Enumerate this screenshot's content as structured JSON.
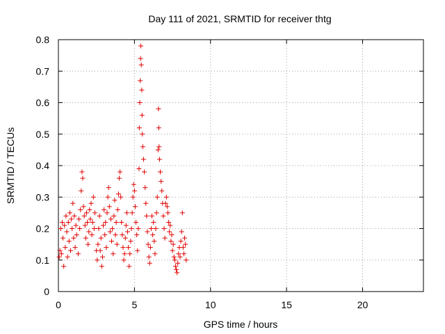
{
  "chart_data": {
    "type": "scatter",
    "title": "Day 111 of 2021, SRMTID for receiver thtg",
    "xlabel": "GPS time / hours",
    "ylabel": "SRMTID / TECUs",
    "xlim": [
      0,
      24
    ],
    "ylim": [
      0,
      0.8
    ],
    "xticks": [
      0,
      5,
      10,
      15,
      20
    ],
    "xtick_labels": [
      "0",
      "5",
      "10",
      "15",
      "20"
    ],
    "yticks": [
      0,
      0.1,
      0.2,
      0.3,
      0.4,
      0.5,
      0.6,
      0.7,
      0.8
    ],
    "ytick_labels": [
      "0",
      "0.1",
      "0.2",
      "0.3",
      "0.4",
      "0.5",
      "0.6",
      "0.7",
      "0.8"
    ],
    "grid": true,
    "marker": "plus",
    "color": "#e00000",
    "series": [
      {
        "name": "SRMTID",
        "points": [
          [
            0.05,
            0.11
          ],
          [
            0.1,
            0.13
          ],
          [
            0.15,
            0.2
          ],
          [
            0.2,
            0.12
          ],
          [
            0.25,
            0.22
          ],
          [
            0.3,
            0.17
          ],
          [
            0.35,
            0.08
          ],
          [
            0.4,
            0.21
          ],
          [
            0.45,
            0.14
          ],
          [
            0.5,
            0.24
          ],
          [
            0.55,
            0.19
          ],
          [
            0.6,
            0.11
          ],
          [
            0.65,
            0.22
          ],
          [
            0.7,
            0.16
          ],
          [
            0.75,
            0.25
          ],
          [
            0.8,
            0.13
          ],
          [
            0.85,
            0.23
          ],
          [
            0.9,
            0.2
          ],
          [
            0.95,
            0.28
          ],
          [
            1.0,
            0.17
          ],
          [
            1.05,
            0.24
          ],
          [
            1.1,
            0.14
          ],
          [
            1.15,
            0.21
          ],
          [
            1.2,
            0.18
          ],
          [
            1.3,
            0.12
          ],
          [
            1.35,
            0.23
          ],
          [
            1.4,
            0.2
          ],
          [
            1.45,
            0.26
          ],
          [
            1.5,
            0.32
          ],
          [
            1.55,
            0.38
          ],
          [
            1.6,
            0.36
          ],
          [
            1.65,
            0.27
          ],
          [
            1.7,
            0.24
          ],
          [
            1.75,
            0.21
          ],
          [
            1.8,
            0.17
          ],
          [
            1.85,
            0.25
          ],
          [
            1.9,
            0.22
          ],
          [
            1.95,
            0.15
          ],
          [
            2.0,
            0.19
          ],
          [
            2.05,
            0.26
          ],
          [
            2.1,
            0.23
          ],
          [
            2.15,
            0.28
          ],
          [
            2.2,
            0.18
          ],
          [
            2.25,
            0.22
          ],
          [
            2.3,
            0.3
          ],
          [
            2.35,
            0.2
          ],
          [
            2.4,
            0.25
          ],
          [
            2.5,
            0.13
          ],
          [
            2.55,
            0.1
          ],
          [
            2.6,
            0.15
          ],
          [
            2.65,
            0.2
          ],
          [
            2.7,
            0.24
          ],
          [
            2.75,
            0.13
          ],
          [
            2.8,
            0.17
          ],
          [
            2.85,
            0.08
          ],
          [
            2.9,
            0.11
          ],
          [
            2.95,
            0.21
          ],
          [
            3.0,
            0.26
          ],
          [
            3.05,
            0.18
          ],
          [
            3.1,
            0.22
          ],
          [
            3.15,
            0.14
          ],
          [
            3.2,
            0.25
          ],
          [
            3.25,
            0.3
          ],
          [
            3.3,
            0.33
          ],
          [
            3.35,
            0.27
          ],
          [
            3.4,
            0.19
          ],
          [
            3.45,
            0.23
          ],
          [
            3.5,
            0.16
          ],
          [
            3.55,
            0.2
          ],
          [
            3.6,
            0.12
          ],
          [
            3.65,
            0.24
          ],
          [
            3.7,
            0.29
          ],
          [
            3.75,
            0.18
          ],
          [
            3.8,
            0.22
          ],
          [
            3.85,
            0.15
          ],
          [
            3.9,
            0.26
          ],
          [
            3.95,
            0.31
          ],
          [
            4.0,
            0.36
          ],
          [
            4.05,
            0.38
          ],
          [
            4.1,
            0.3
          ],
          [
            4.15,
            0.22
          ],
          [
            4.2,
            0.18
          ],
          [
            4.25,
            0.14
          ],
          [
            4.3,
            0.1
          ],
          [
            4.35,
            0.12
          ],
          [
            4.4,
            0.17
          ],
          [
            4.45,
            0.21
          ],
          [
            4.5,
            0.25
          ],
          [
            4.55,
            0.19
          ],
          [
            4.6,
            0.14
          ],
          [
            4.65,
            0.08
          ],
          [
            4.7,
            0.12
          ],
          [
            4.75,
            0.16
          ],
          [
            4.8,
            0.2
          ],
          [
            4.85,
            0.25
          ],
          [
            4.9,
            0.3
          ],
          [
            4.95,
            0.34
          ],
          [
            5.0,
            0.32
          ],
          [
            5.05,
            0.27
          ],
          [
            5.1,
            0.22
          ],
          [
            5.15,
            0.18
          ],
          [
            5.2,
            0.13
          ],
          [
            5.25,
            0.2
          ],
          [
            5.3,
            0.39
          ],
          [
            5.32,
            0.52
          ],
          [
            5.35,
            0.6
          ],
          [
            5.38,
            0.67
          ],
          [
            5.4,
            0.74
          ],
          [
            5.42,
            0.78
          ],
          [
            5.45,
            0.72
          ],
          [
            5.48,
            0.64
          ],
          [
            5.5,
            0.56
          ],
          [
            5.52,
            0.5
          ],
          [
            5.55,
            0.46
          ],
          [
            5.6,
            0.42
          ],
          [
            5.65,
            0.38
          ],
          [
            5.7,
            0.33
          ],
          [
            5.75,
            0.28
          ],
          [
            5.8,
            0.24
          ],
          [
            5.85,
            0.19
          ],
          [
            5.9,
            0.15
          ],
          [
            5.95,
            0.11
          ],
          [
            6.0,
            0.09
          ],
          [
            6.05,
            0.14
          ],
          [
            6.1,
            0.2
          ],
          [
            6.15,
            0.24
          ],
          [
            6.2,
            0.18
          ],
          [
            6.25,
            0.22
          ],
          [
            6.3,
            0.16
          ],
          [
            6.35,
            0.12
          ],
          [
            6.4,
            0.2
          ],
          [
            6.45,
            0.25
          ],
          [
            6.5,
            0.3
          ],
          [
            6.55,
            0.45
          ],
          [
            6.58,
            0.58
          ],
          [
            6.6,
            0.52
          ],
          [
            6.62,
            0.46
          ],
          [
            6.65,
            0.42
          ],
          [
            6.7,
            0.38
          ],
          [
            6.75,
            0.35
          ],
          [
            6.8,
            0.32
          ],
          [
            6.85,
            0.28
          ],
          [
            6.9,
            0.24
          ],
          [
            6.95,
            0.2
          ],
          [
            7.0,
            0.17
          ],
          [
            7.05,
            0.28
          ],
          [
            7.1,
            0.3
          ],
          [
            7.15,
            0.27
          ],
          [
            7.2,
            0.25
          ],
          [
            7.25,
            0.22
          ],
          [
            7.3,
            0.19
          ],
          [
            7.35,
            0.21
          ],
          [
            7.4,
            0.16
          ],
          [
            7.45,
            0.18
          ],
          [
            7.5,
            0.13
          ],
          [
            7.55,
            0.15
          ],
          [
            7.6,
            0.11
          ],
          [
            7.65,
            0.1
          ],
          [
            7.7,
            0.08
          ],
          [
            7.75,
            0.07
          ],
          [
            7.8,
            0.06
          ],
          [
            7.85,
            0.09
          ],
          [
            7.9,
            0.12
          ],
          [
            7.95,
            0.14
          ],
          [
            8.0,
            0.11
          ],
          [
            8.05,
            0.16
          ],
          [
            8.1,
            0.19
          ],
          [
            8.15,
            0.25
          ],
          [
            8.2,
            0.14
          ],
          [
            8.25,
            0.12
          ],
          [
            8.3,
            0.17
          ],
          [
            8.35,
            0.15
          ],
          [
            8.4,
            0.1
          ]
        ]
      }
    ]
  }
}
